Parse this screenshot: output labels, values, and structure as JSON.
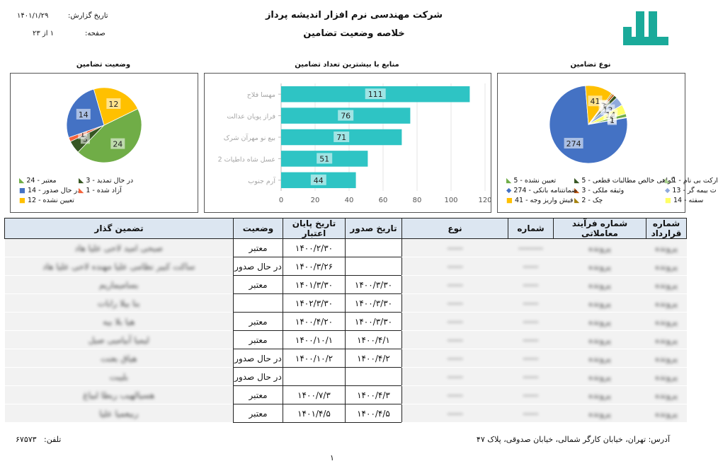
{
  "header": {
    "company": "شرکت مهندسی نرم افزار اندیشه پرداز",
    "report_title": "خلاصه وضعیت تضامین",
    "report_date_label": "تاریخ گزارش:",
    "report_date": "۱۴۰۱/۱/۲۹",
    "page_label": "صفحه:",
    "page_value": "۱ از ۲۳",
    "logo_color": "#1aaa9a"
  },
  "charts": {
    "status": {
      "title": "وضعیت تضامین",
      "legend": [
        "معتبر - 24",
        "در حال تمدید - 3",
        "در حال صدور - 14",
        "آزاد شده - 1",
        "تعیین نشده - 12"
      ]
    },
    "sources": {
      "title": "منابع با بیشترین تعداد تضامین",
      "categories": [
        "مهسا فلاح",
        "فراز پویان عدالت",
        "بیع نو مهرآن شرک",
        "عسل شاه داطیات 2",
        "آرم جنوب"
      ]
    },
    "types": {
      "title": "نوع تضامین",
      "legend": [
        "گواهی خالص مطالبات قطعی - 5",
        "تعیین نشده - 5",
        "ارکت بی نام - 1",
        "وثیقه ملکی - 3",
        "ضمانتنامه بانکی - 274",
        "ت بیمه گر - 13",
        "چک - 2",
        "فیش واریز وجه - 41",
        "سفته - 14"
      ]
    }
  },
  "chart_data": [
    {
      "type": "pie",
      "title": "وضعیت تضامین",
      "labels": [
        "معتبر",
        "در حال تمدید",
        "آزاد شده",
        "در حال صدور",
        "تعیین نشده"
      ],
      "values": [
        24,
        3,
        1,
        14,
        12
      ],
      "colors": [
        "#70ad47",
        "#375623",
        "#f4623a",
        "#4472c4",
        "#ffc000"
      ]
    },
    {
      "type": "bar",
      "orientation": "horizontal",
      "title": "منابع با بیشترین تعداد تضامین",
      "categories": [
        "مهسا فلاح",
        "فراز پویان عدالت",
        "بیع نو مهرآن شرک",
        "عسل شاه داطیات 2",
        "آرم جنوب"
      ],
      "values": [
        111,
        76,
        71,
        51,
        44
      ],
      "xlim": [
        0,
        120
      ],
      "ticks": [
        0,
        20,
        40,
        60,
        80,
        100,
        120
      ],
      "color": "#2ec4c4",
      "grid": true
    },
    {
      "type": "pie",
      "title": "نوع تضامین",
      "labels": [
        "ضمانتنامه بانکی",
        "فیش واریز وجه",
        "چک",
        "وثیقه ملکی",
        "گواهی خالص مطالبات قطعی",
        "ت بیمه گر",
        "سفته",
        "تعیین نشده",
        "ارکت بی نام"
      ],
      "values": [
        274,
        41,
        2,
        3,
        5,
        13,
        14,
        5,
        1
      ],
      "colors": [
        "#4472c4",
        "#ffc000",
        "#a5820f",
        "#c55a11",
        "#375623",
        "#8faadc",
        "#ffff66",
        "#70ad47",
        "#a9d18e"
      ]
    }
  ],
  "table": {
    "headers": [
      "شماره قرارداد",
      "شماره فرآیند معاملاتی",
      "شماره",
      "نوع",
      "تاریخ صدور",
      "تاریخ پایان اعتبار",
      "وضعیت",
      "تضمین گذار"
    ],
    "rows": [
      {
        "contract": "پرونده",
        "process": "پرونده",
        "number": "--------",
        "type": "-----",
        "issue": "",
        "expire": "۱۴۰۰/۲/۳۰",
        "status": "معتبر",
        "guarantor": "صبحی امید لاحی علیا هاد"
      },
      {
        "contract": "پرونده",
        "process": "پرونده",
        "number": "-----",
        "type": "-----",
        "issue": "",
        "expire": "۱۴۰۰/۳/۲۶",
        "status": "در حال صدور",
        "guarantor": "ساکت کبیر نظامی علیا مهنده لاحی علیا هاد"
      },
      {
        "contract": "پرونده",
        "process": "پرونده",
        "number": "-----",
        "type": "-----",
        "issue": "۱۴۰۰/۳/۳۰",
        "expire": "۱۴۰۱/۳/۳۰",
        "status": "معتبر",
        "guarantor": "بسامیماریم"
      },
      {
        "contract": "پرونده",
        "process": "پرونده",
        "number": "-----",
        "type": "-----",
        "issue": "۱۴۰۰/۳/۳۰",
        "expire": "۱۴۰۲/۳/۳۰",
        "status": "",
        "guarantor": "بنا بیلا رابات"
      },
      {
        "contract": "پرونده",
        "process": "پرونده",
        "number": "-----",
        "type": "-----",
        "issue": "۱۴۰۰/۳/۳۰",
        "expire": "۱۴۰۰/۴/۲۰",
        "status": "معتبر",
        "guarantor": "هیا بلا بیه"
      },
      {
        "contract": "پرونده",
        "process": "پرونده",
        "number": "-----",
        "type": "-----",
        "issue": "۱۴۰۰/۴/۱",
        "expire": "۱۴۰۰/۱۰/۱",
        "status": "معتبر",
        "guarantor": "لیمیا آبیامیی صیل"
      },
      {
        "contract": "پرونده",
        "process": "پرونده",
        "number": "-----",
        "type": "-----",
        "issue": "۱۴۰۰/۴/۲",
        "expire": "۱۴۰۰/۱۰/۲",
        "status": "در حال صدور",
        "guarantor": "هیاق بعنت"
      },
      {
        "contract": "پرونده",
        "process": "پرونده",
        "number": "-----",
        "type": "-----",
        "issue": "",
        "expire": "",
        "status": "در حال صدور",
        "guarantor": "بلیبت"
      },
      {
        "contract": "پرونده",
        "process": "پرونده",
        "number": "-----",
        "type": "-----",
        "issue": "۱۴۰۰/۴/۳",
        "expire": "۱۴۰۰/۷/۳",
        "status": "معتبر",
        "guarantor": "هسیالهیب ربطا لبیاغ"
      },
      {
        "contract": "پرونده",
        "process": "پرونده",
        "number": "-----",
        "type": "-----",
        "issue": "۱۴۰۰/۴/۵",
        "expire": "۱۴۰۱/۴/۵",
        "status": "معتبر",
        "guarantor": "ربیعمیا علیا"
      }
    ]
  },
  "footer": {
    "address": "آدرس: تهران، خیابان کارگر شمالی، خیابان صدوقی، پلاک ۴۷",
    "phone_label": "تلفن:",
    "phone": "۶۷۵۷۳",
    "page_number": "۱"
  }
}
